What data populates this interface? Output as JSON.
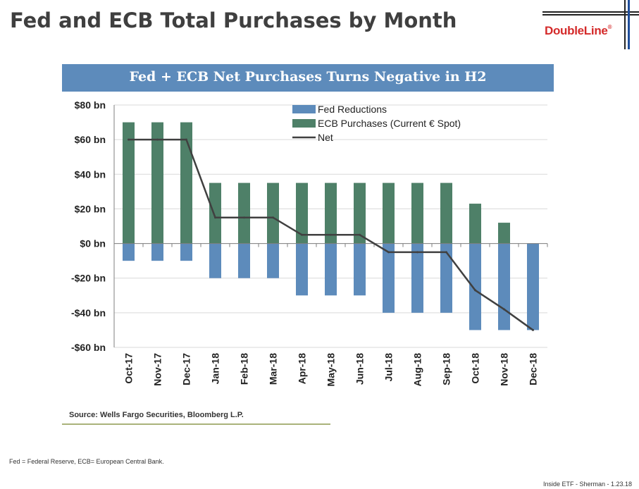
{
  "slide": {
    "title": "Fed and ECB Total Purchases by Month",
    "logo_text": "DoubleLine",
    "logo_mark": "®",
    "source": "Source: Wells Fargo Securities, Bloomberg L.P.",
    "footnote": "Fed = Federal Reserve, ECB= European Central Bank.",
    "footer": "Inside ETF - Sherman - 1.23.18"
  },
  "colors": {
    "fed": "#5d8bbb",
    "ecb": "#4e8068",
    "net": "#404040",
    "banner": "#5d8bbb",
    "brand": "#d42a2a"
  },
  "chart_data": {
    "type": "bar",
    "title": "Fed + ECB Net Purchases Turns Negative in H2",
    "categories": [
      "Oct-17",
      "Nov-17",
      "Dec-17",
      "Jan-18",
      "Feb-18",
      "Mar-18",
      "Apr-18",
      "May-18",
      "Jun-18",
      "Jul-18",
      "Aug-18",
      "Sep-18",
      "Oct-18",
      "Nov-18",
      "Dec-18"
    ],
    "series": [
      {
        "name": "Fed Reductions",
        "type": "bar",
        "values": [
          -10,
          -10,
          -10,
          -20,
          -20,
          -20,
          -30,
          -30,
          -30,
          -40,
          -40,
          -40,
          -50,
          -50,
          -50
        ]
      },
      {
        "name": "ECB Purchases (Current € Spot)",
        "type": "bar",
        "values": [
          70,
          70,
          70,
          35,
          35,
          35,
          35,
          35,
          35,
          35,
          35,
          35,
          23,
          12,
          0
        ]
      },
      {
        "name": "Net",
        "type": "line",
        "values": [
          60,
          60,
          60,
          15,
          15,
          15,
          5,
          5,
          5,
          -5,
          -5,
          -5,
          -27,
          -38,
          -50
        ]
      }
    ],
    "yticks": [
      80,
      60,
      40,
      20,
      0,
      -20,
      -40,
      -60
    ],
    "ytick_labels": [
      "$80 bn",
      "$60 bn",
      "$40 bn",
      "$20 bn",
      "$0 bn",
      "-$20 bn",
      "-$40 bn",
      "-$60 bn"
    ],
    "ylim": [
      -60,
      80
    ],
    "grid": true,
    "legend_position": "top-right"
  }
}
